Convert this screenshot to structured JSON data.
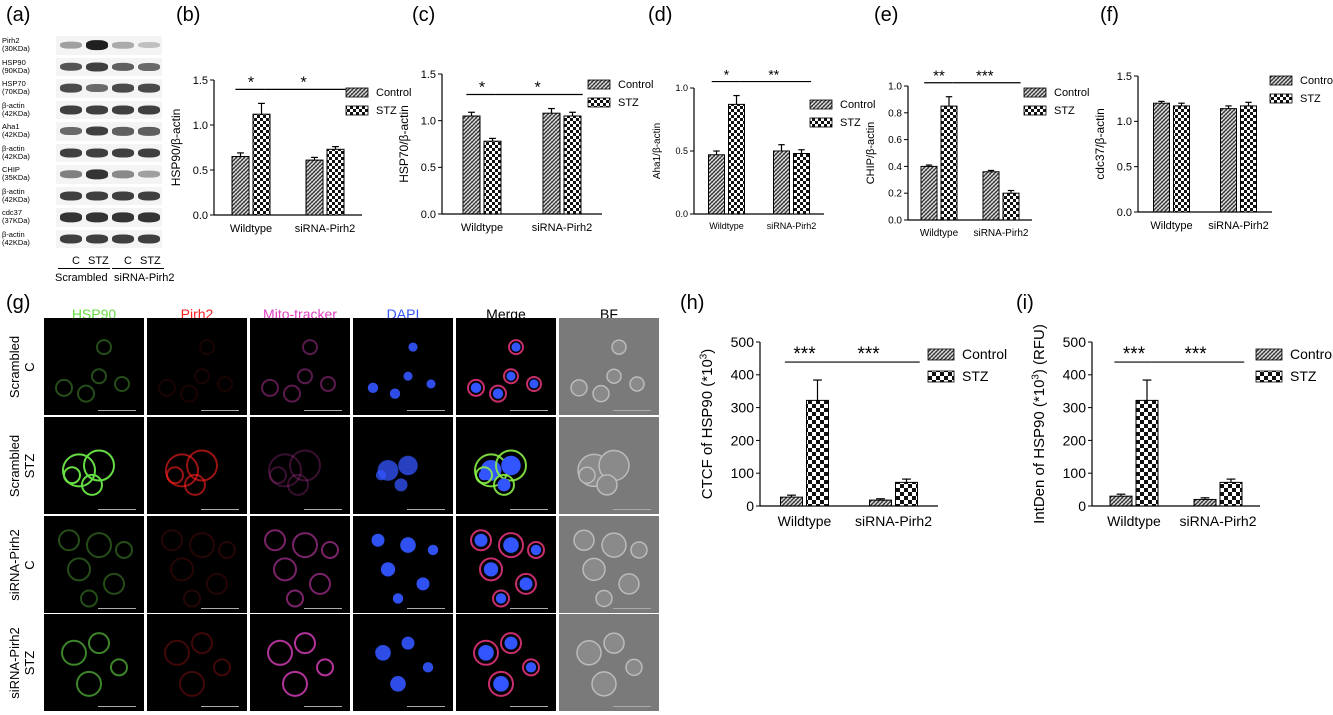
{
  "panel_labels": [
    "(a)",
    "(b)",
    "(c)",
    "(d)",
    "(e)",
    "(f)",
    "(g)",
    "(h)",
    "(i)"
  ],
  "western_blot": {
    "rows": [
      {
        "name": "Pirh2",
        "kda": "(30KDa)",
        "intensities": [
          0.35,
          0.95,
          0.3,
          0.2
        ]
      },
      {
        "name": "HSP90",
        "kda": "(90KDa)",
        "intensities": [
          0.7,
          0.8,
          0.65,
          0.6
        ]
      },
      {
        "name": "HSP70",
        "kda": "(70KDa)",
        "intensities": [
          0.75,
          0.6,
          0.75,
          0.75
        ]
      },
      {
        "name": "β-actin",
        "kda": "(42KDa)",
        "intensities": [
          0.8,
          0.8,
          0.8,
          0.8
        ]
      },
      {
        "name": "Aha1",
        "kda": "(42KDa)",
        "intensities": [
          0.6,
          0.8,
          0.65,
          0.65
        ]
      },
      {
        "name": "β-actin",
        "kda": "(42KDa)",
        "intensities": [
          0.8,
          0.8,
          0.8,
          0.8
        ]
      },
      {
        "name": "CHIP",
        "kda": "(35KDa)",
        "intensities": [
          0.5,
          0.85,
          0.45,
          0.35
        ]
      },
      {
        "name": "β-actin",
        "kda": "(42KDa)",
        "intensities": [
          0.8,
          0.8,
          0.8,
          0.8
        ]
      },
      {
        "name": "cdc37",
        "kda": "(37KDa)",
        "intensities": [
          0.85,
          0.85,
          0.85,
          0.85
        ]
      },
      {
        "name": "β-actin",
        "kda": "(42KDa)",
        "intensities": [
          0.8,
          0.8,
          0.8,
          0.8
        ]
      }
    ],
    "lane_labels": [
      "C",
      "STZ",
      "C",
      "STZ"
    ],
    "group_labels": [
      "Scrambled",
      "siRNA-Pirh2"
    ]
  },
  "microscopy": {
    "channels": [
      {
        "label": "HSP90",
        "color": "#66dd44"
      },
      {
        "label": "Pirh2",
        "color": "#ff2020"
      },
      {
        "label": "Mito-tracker",
        "color": "#e040c0"
      },
      {
        "label": "DAPI",
        "color": "#3355ff"
      },
      {
        "label": "Merge",
        "color": "#000000"
      },
      {
        "label": "BF",
        "color": "#000000"
      }
    ],
    "rows": [
      {
        "line1": "Scrambled",
        "line2": "C"
      },
      {
        "line1": "Scrambled",
        "line2": "STZ"
      },
      {
        "line1": "siRNA-Pirh2",
        "line2": "C"
      },
      {
        "line1": "siRNA-Pirh2",
        "line2": "STZ"
      }
    ]
  },
  "chart_data": [
    {
      "panel": "(b)",
      "type": "bar",
      "categories": [
        "Wildtype",
        "siRNA-Pirh2"
      ],
      "series": [
        {
          "name": "Control",
          "values": [
            0.65,
            0.61
          ],
          "errors": [
            0.04,
            0.03
          ]
        },
        {
          "name": "STZ",
          "values": [
            1.12,
            0.73
          ],
          "errors": [
            0.12,
            0.03
          ]
        }
      ],
      "ylabel": "HSP90/β-actin",
      "ylim": [
        0,
        1.5
      ],
      "yticks": [
        0.0,
        0.5,
        1.0,
        1.5
      ],
      "tick_labels": [
        "0.0",
        "0.5",
        "1.0",
        "1.5"
      ],
      "significance": [
        "*",
        "*"
      ],
      "legend": "right"
    },
    {
      "panel": "(c)",
      "type": "bar",
      "categories": [
        "Wildtype",
        "siRNA-Pirh2"
      ],
      "series": [
        {
          "name": "Control",
          "values": [
            1.05,
            1.08
          ],
          "errors": [
            0.04,
            0.05
          ]
        },
        {
          "name": "STZ",
          "values": [
            0.78,
            1.05
          ],
          "errors": [
            0.03,
            0.04
          ]
        }
      ],
      "ylabel": "HSP70/β-actin",
      "ylim": [
        0,
        1.5
      ],
      "yticks": [
        0.0,
        0.5,
        1.0,
        1.5
      ],
      "tick_labels": [
        "0.0",
        "0.5",
        "1.0",
        "1.5"
      ],
      "significance": [
        "*",
        "*"
      ],
      "legend": "right"
    },
    {
      "panel": "(d)",
      "type": "bar",
      "categories": [
        "Wildtype",
        "siRNA-Pirh2"
      ],
      "series": [
        {
          "name": "Control",
          "values": [
            0.47,
            0.5
          ],
          "errors": [
            0.03,
            0.05
          ]
        },
        {
          "name": "STZ",
          "values": [
            0.87,
            0.48
          ],
          "errors": [
            0.07,
            0.03
          ]
        }
      ],
      "ylabel": "Aha1/β-actin",
      "ylim": [
        0,
        1.0
      ],
      "yticks": [
        0.0,
        0.5,
        1.0
      ],
      "tick_labels": [
        "0.0",
        "0.5",
        "1.0"
      ],
      "significance": [
        "*",
        "**"
      ],
      "legend": "right"
    },
    {
      "panel": "(e)",
      "type": "bar",
      "categories": [
        "Wildtype",
        "siRNA-Pirh2"
      ],
      "series": [
        {
          "name": "Control",
          "values": [
            0.4,
            0.36
          ],
          "errors": [
            0.01,
            0.01
          ]
        },
        {
          "name": "STZ",
          "values": [
            0.85,
            0.2
          ],
          "errors": [
            0.07,
            0.02
          ]
        }
      ],
      "ylabel": "CHIP/β-actin",
      "ylim": [
        0,
        1.0
      ],
      "yticks": [
        0.0,
        0.2,
        0.4,
        0.6,
        0.8,
        1.0
      ],
      "tick_labels": [
        "0.0",
        "0.2",
        "0.4",
        "0.6",
        "0.8",
        "1.0"
      ],
      "significance": [
        "**",
        "***"
      ],
      "legend": "right"
    },
    {
      "panel": "(f)",
      "type": "bar",
      "categories": [
        "Wildtype",
        "siRNA-Pirh2"
      ],
      "series": [
        {
          "name": "Control",
          "values": [
            1.2,
            1.14
          ],
          "errors": [
            0.02,
            0.03
          ]
        },
        {
          "name": "STZ",
          "values": [
            1.17,
            1.17
          ],
          "errors": [
            0.03,
            0.04
          ]
        }
      ],
      "ylabel": "cdc37/β-actin",
      "ylim": [
        0,
        1.5
      ],
      "yticks": [
        0.0,
        0.5,
        1.0,
        1.5
      ],
      "tick_labels": [
        "0.0",
        "0.5",
        "1.0",
        "1.5"
      ],
      "significance": [],
      "legend": "right"
    },
    {
      "panel": "(h)",
      "type": "bar",
      "categories": [
        "Wildtype",
        "siRNA-Pirh2"
      ],
      "series": [
        {
          "name": "Control",
          "values": [
            27,
            18
          ],
          "errors": [
            6,
            4
          ]
        },
        {
          "name": "STZ",
          "values": [
            322,
            72
          ],
          "errors": [
            62,
            10
          ]
        }
      ],
      "ylabel": "CTCF of HSP90 (*10³)",
      "ylim": [
        0,
        500
      ],
      "yticks": [
        0,
        100,
        200,
        300,
        400,
        500
      ],
      "tick_labels": [
        "0",
        "100",
        "200",
        "300",
        "400",
        "500"
      ],
      "significance": [
        "***",
        "***"
      ],
      "legend": "right"
    },
    {
      "panel": "(i)",
      "type": "bar",
      "categories": [
        "Wildtype",
        "siRNA-Pirh2"
      ],
      "series": [
        {
          "name": "Control",
          "values": [
            30,
            20
          ],
          "errors": [
            6,
            5
          ]
        },
        {
          "name": "STZ",
          "values": [
            322,
            72
          ],
          "errors": [
            62,
            10
          ]
        }
      ],
      "ylabel": "IntDen of HSP90 (*10³) (RFU)",
      "ylim": [
        0,
        500
      ],
      "yticks": [
        0,
        100,
        200,
        300,
        400,
        500
      ],
      "tick_labels": [
        "0",
        "100",
        "200",
        "300",
        "400",
        "500"
      ],
      "significance": [
        "***",
        "***"
      ],
      "legend": "right"
    }
  ]
}
